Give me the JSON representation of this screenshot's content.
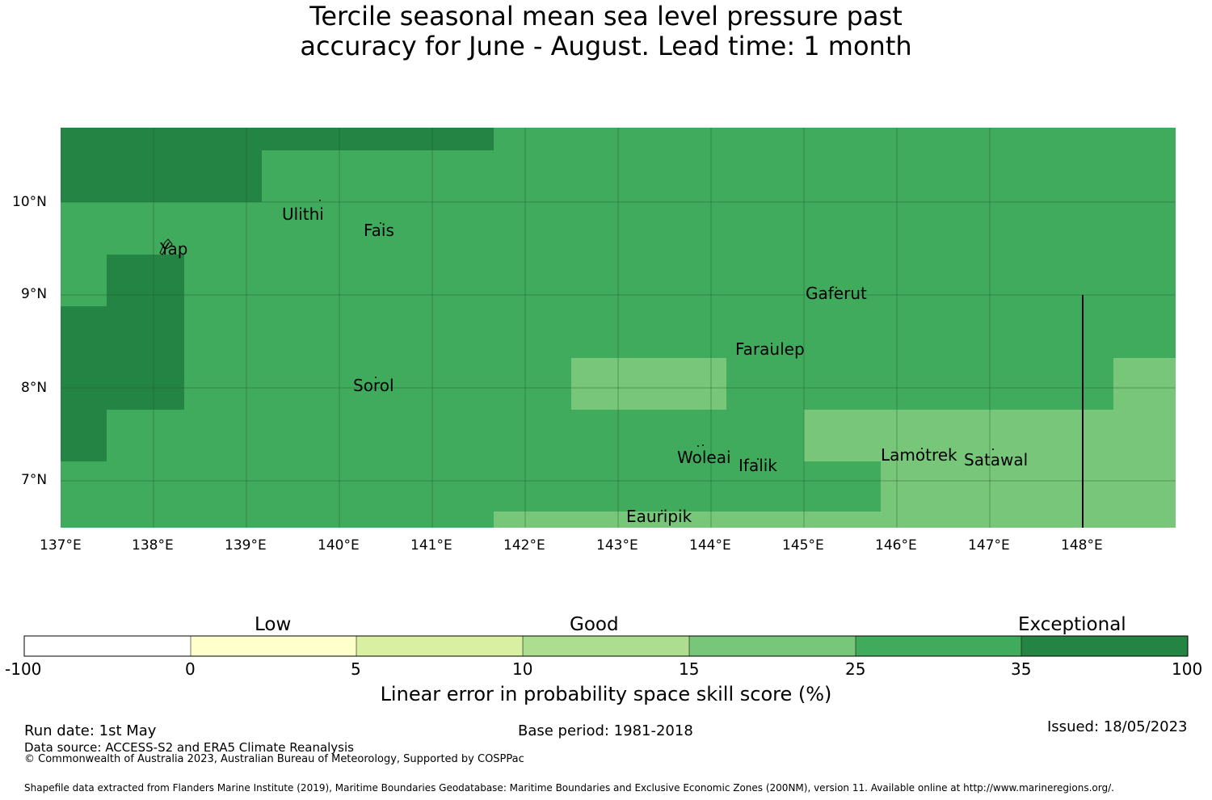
{
  "title": {
    "line1": "Tercile seasonal mean sea level pressure past",
    "line2": "accuracy for June - August. Lead time: 1 month"
  },
  "map": {
    "lon_ticks": [
      "137°E",
      "138°E",
      "139°E",
      "140°E",
      "141°E",
      "142°E",
      "143°E",
      "144°E",
      "145°E",
      "146°E",
      "147°E",
      "148°E"
    ],
    "lat_ticks": [
      "10°N",
      "9°N",
      "8°N",
      "7°N"
    ],
    "lon_values": [
      137,
      138,
      139,
      140,
      141,
      142,
      143,
      144,
      145,
      146,
      147,
      148
    ],
    "lat_values": [
      10,
      9,
      8,
      7
    ],
    "islands": [
      "Ulithi",
      "Fais",
      "Yap",
      "Gaferut",
      "Faraulep",
      "Sorol",
      "Woleai",
      "Ifalik",
      "Lamotrek",
      "Satawal",
      "Eauripik"
    ],
    "boundary_line_lon": 148
  },
  "legend": {
    "category_low": "Low",
    "category_good": "Good",
    "category_exceptional": "Exceptional",
    "ticks": [
      "-100",
      "0",
      "5",
      "10",
      "15",
      "25",
      "35",
      "100"
    ],
    "colors": [
      "#ffffff",
      "#ffffcc",
      "#d9f0a3",
      "#addd8e",
      "#78c679",
      "#41ab5d",
      "#238443"
    ],
    "label": "Linear error in probability space skill score (%)"
  },
  "footer": {
    "run_date": "Run date: 1st May",
    "base_period": "Base period: 1981-2018",
    "issued": "Issued: 18/05/2023",
    "data_source": "Data source: ACCESS-S2 and ERA5 Climate Reanalysis",
    "copyright": "© Commonwealth of Australia 2023, Australian Bureau of Meteorology, Supported by COSPPac",
    "shapefile": "Shapefile data extracted from Flanders Marine Institute (2019), Maritime Boundaries Geodatabase: Maritime Boundaries and Exclusive Economic Zones (200NM), version 11. Available online at http://www.marineregions.org/."
  }
}
